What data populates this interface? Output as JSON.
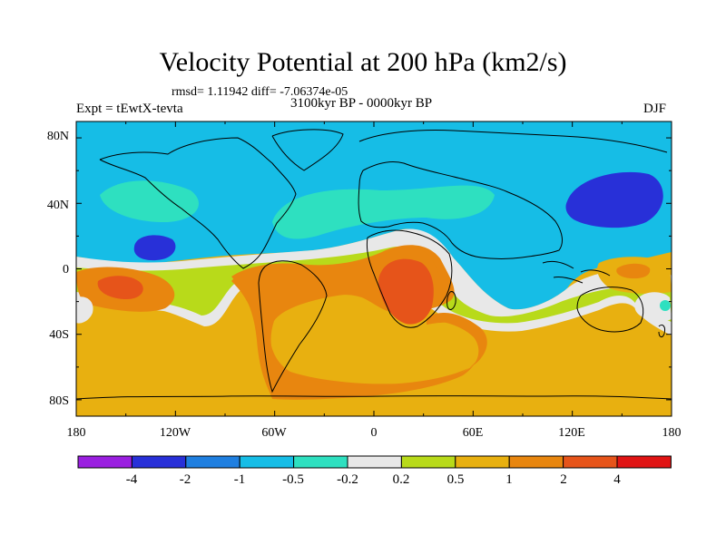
{
  "title": "Velocity Potential at 200 hPa (km2/s)",
  "stats": "rmsd= 1.11942 diff= -7.06374e-05",
  "experiment": "Expt = tEwtX-tevta",
  "period": "3100kyr BP - 0000kyr BP",
  "season": "DJF",
  "chart_data": {
    "type": "heatmap",
    "title": "Velocity Potential at 200 hPa (km2/s)",
    "xlabel": "",
    "ylabel": "",
    "xlim": [
      -180,
      180
    ],
    "ylim": [
      -90,
      90
    ],
    "x_tick_labels": [
      "180",
      "120W",
      "60W",
      "0",
      "60E",
      "120E",
      "180"
    ],
    "y_tick_labels": [
      "80N",
      "40N",
      "0",
      "40S",
      "80S"
    ],
    "colorbar": {
      "levels": [
        "-4",
        "-2",
        "-1",
        "-0.5",
        "-0.2",
        "0.2",
        "0.5",
        "1",
        "2",
        "4"
      ],
      "colors": [
        "#9a1fe0",
        "#2830d8",
        "#1f7fe0",
        "#16bde6",
        "#2ee0c0",
        "#e8e8e8",
        "#b8da1a",
        "#e8b010",
        "#e8860f",
        "#e6541a",
        "#e01414"
      ]
    },
    "regions": [
      {
        "name": "northern-tropics-to-pole",
        "value_range": "-1 to -0.5"
      },
      {
        "name": "north-pacific-low",
        "value_range": "< -2"
      },
      {
        "name": "east-asia-low",
        "value_range": "< -2"
      },
      {
        "name": "atlantic-tongue",
        "value_range": "-0.5 to -0.2"
      },
      {
        "name": "south-america-atlantic-africa",
        "value_range": "1 to 2"
      },
      {
        "name": "southern-africa-max",
        "value_range": "2 to 4"
      },
      {
        "name": "southern-ocean",
        "value_range": "0.5 to 1"
      }
    ]
  }
}
